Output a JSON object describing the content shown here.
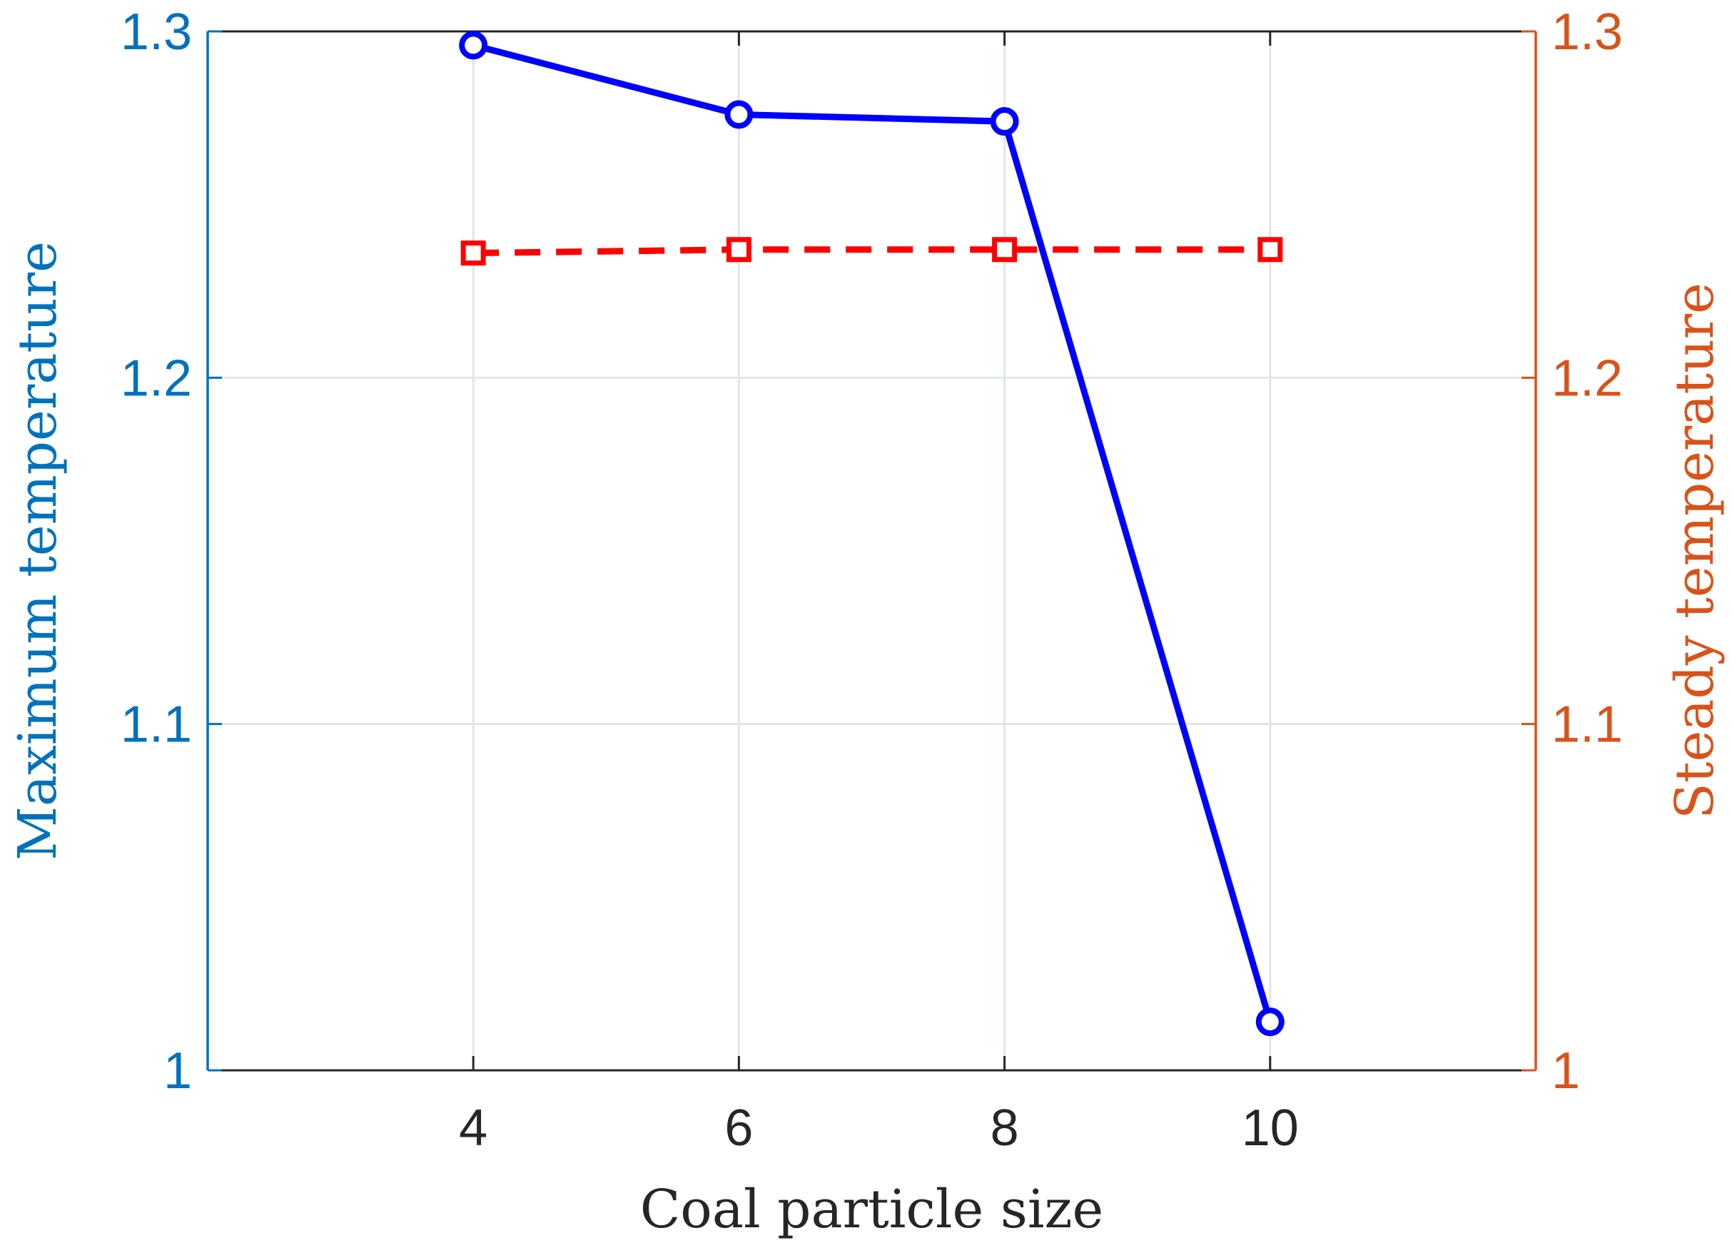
{
  "chart_data": {
    "type": "line",
    "title": "",
    "xlabel": "Coal particle size",
    "ylabel_left": "Maximum temperature",
    "ylabel_right": "Steady temperature",
    "xlim": [
      2,
      12
    ],
    "ylim_left": [
      1.0,
      1.3
    ],
    "ylim_right": [
      1.0,
      1.3
    ],
    "x_ticks": [
      4,
      6,
      8,
      10
    ],
    "x_tick_labels": [
      "4",
      "6",
      "8",
      "10"
    ],
    "y_ticks_left": [
      1.0,
      1.1,
      1.2,
      1.3
    ],
    "y_tick_labels_left": [
      "1",
      "1.1",
      "1.2",
      "1.3"
    ],
    "y_ticks_right": [
      1.0,
      1.1,
      1.2,
      1.3
    ],
    "y_tick_labels_right": [
      "1",
      "1.1",
      "1.2",
      "1.3"
    ],
    "grid": true,
    "series": [
      {
        "name": "Maximum temperature",
        "axis": "left",
        "x": [
          4,
          6,
          8,
          10
        ],
        "values": [
          1.296,
          1.276,
          1.274,
          1.014
        ],
        "color": "#0000ff",
        "line_style": "solid",
        "marker": "circle"
      },
      {
        "name": "Steady temperature",
        "axis": "right",
        "x": [
          4,
          6,
          8,
          10
        ],
        "values": [
          1.236,
          1.237,
          1.237,
          1.237
        ],
        "color": "#ff0000",
        "line_style": "dashed",
        "marker": "square"
      }
    ]
  },
  "colors": {
    "left_axis": "#0072bd",
    "right_axis": "#d95319",
    "grid": "#dfe5ec",
    "frame": "#262626",
    "xlabel_text": "#262626"
  }
}
